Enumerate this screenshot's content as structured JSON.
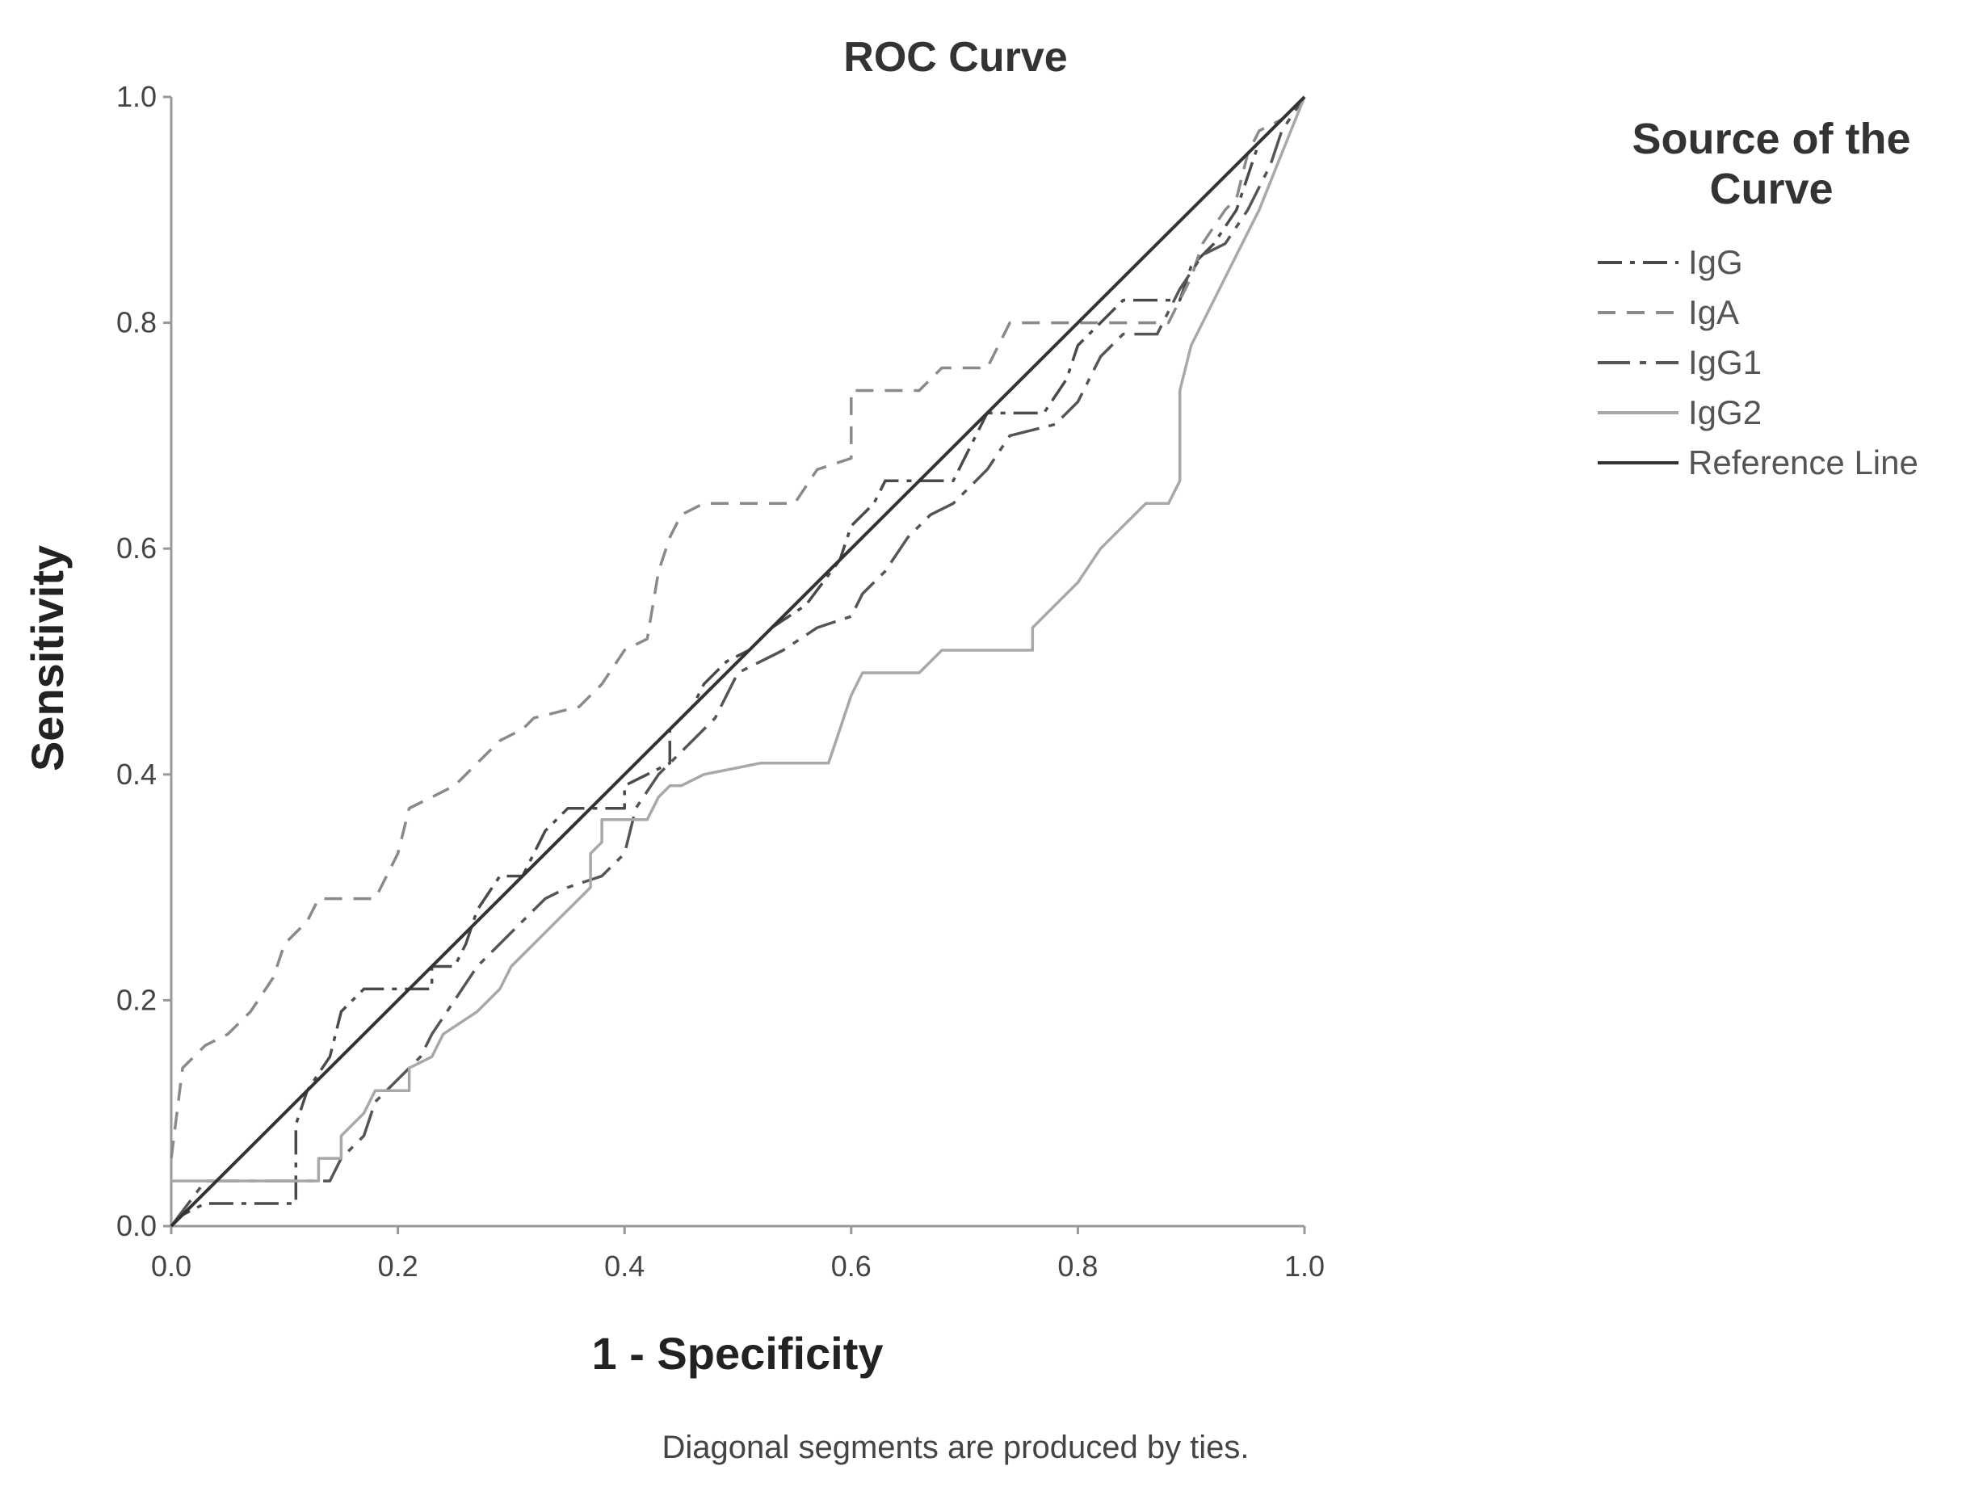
{
  "chart_data": {
    "type": "line",
    "title": "ROC Curve",
    "xlabel": "1 - Specificity",
    "ylabel": "Sensitivity",
    "xlim": [
      0,
      1
    ],
    "ylim": [
      0,
      1
    ],
    "x_ticks": [
      "0.0",
      "0.2",
      "0.4",
      "0.6",
      "0.8",
      "1.0"
    ],
    "y_ticks": [
      "0.0",
      "0.2",
      "0.4",
      "0.6",
      "0.8",
      "1.0"
    ],
    "grid": false,
    "legend": {
      "title_lines": [
        "Source of the",
        "Curve"
      ],
      "placement": "right"
    },
    "footnote": "Diagonal segments are produced by ties.",
    "series": [
      {
        "name": "IgG",
        "dash": "dash-dot",
        "color": "#4a4a4a",
        "points": [
          [
            0,
            0
          ],
          [
            0.01,
            0.01
          ],
          [
            0.03,
            0.02
          ],
          [
            0.11,
            0.02
          ],
          [
            0.11,
            0.09
          ],
          [
            0.12,
            0.12
          ],
          [
            0.14,
            0.15
          ],
          [
            0.15,
            0.19
          ],
          [
            0.17,
            0.21
          ],
          [
            0.23,
            0.21
          ],
          [
            0.23,
            0.23
          ],
          [
            0.25,
            0.23
          ],
          [
            0.26,
            0.25
          ],
          [
            0.27,
            0.28
          ],
          [
            0.29,
            0.31
          ],
          [
            0.31,
            0.31
          ],
          [
            0.33,
            0.35
          ],
          [
            0.35,
            0.37
          ],
          [
            0.4,
            0.37
          ],
          [
            0.4,
            0.39
          ],
          [
            0.44,
            0.41
          ],
          [
            0.44,
            0.44
          ],
          [
            0.46,
            0.46
          ],
          [
            0.47,
            0.48
          ],
          [
            0.49,
            0.5
          ],
          [
            0.51,
            0.51
          ],
          [
            0.53,
            0.53
          ],
          [
            0.56,
            0.55
          ],
          [
            0.59,
            0.59
          ],
          [
            0.6,
            0.62
          ],
          [
            0.62,
            0.64
          ],
          [
            0.63,
            0.66
          ],
          [
            0.69,
            0.66
          ],
          [
            0.71,
            0.7
          ],
          [
            0.72,
            0.72
          ],
          [
            0.77,
            0.72
          ],
          [
            0.79,
            0.75
          ],
          [
            0.8,
            0.78
          ],
          [
            0.82,
            0.8
          ],
          [
            0.84,
            0.82
          ],
          [
            0.89,
            0.82
          ],
          [
            0.9,
            0.85
          ],
          [
            0.92,
            0.87
          ],
          [
            0.94,
            0.9
          ],
          [
            0.96,
            0.96
          ],
          [
            0.97,
            0.97
          ],
          [
            0.98,
            0.98
          ],
          [
            0.99,
            0.99
          ],
          [
            1,
            1
          ]
        ]
      },
      {
        "name": "IgA",
        "dash": "dashed",
        "color": "#8a8a8a",
        "points": [
          [
            0,
            0.06
          ],
          [
            0.01,
            0.14
          ],
          [
            0.03,
            0.16
          ],
          [
            0.05,
            0.17
          ],
          [
            0.07,
            0.19
          ],
          [
            0.09,
            0.22
          ],
          [
            0.1,
            0.25
          ],
          [
            0.12,
            0.27
          ],
          [
            0.13,
            0.29
          ],
          [
            0.18,
            0.29
          ],
          [
            0.2,
            0.33
          ],
          [
            0.21,
            0.37
          ],
          [
            0.23,
            0.38
          ],
          [
            0.25,
            0.39
          ],
          [
            0.27,
            0.41
          ],
          [
            0.29,
            0.43
          ],
          [
            0.31,
            0.44
          ],
          [
            0.32,
            0.45
          ],
          [
            0.36,
            0.46
          ],
          [
            0.38,
            0.48
          ],
          [
            0.4,
            0.51
          ],
          [
            0.42,
            0.52
          ],
          [
            0.43,
            0.58
          ],
          [
            0.44,
            0.61
          ],
          [
            0.45,
            0.63
          ],
          [
            0.47,
            0.64
          ],
          [
            0.55,
            0.64
          ],
          [
            0.57,
            0.67
          ],
          [
            0.6,
            0.68
          ],
          [
            0.6,
            0.74
          ],
          [
            0.66,
            0.74
          ],
          [
            0.68,
            0.76
          ],
          [
            0.72,
            0.76
          ],
          [
            0.74,
            0.8
          ],
          [
            0.88,
            0.8
          ],
          [
            0.9,
            0.84
          ],
          [
            0.91,
            0.87
          ],
          [
            0.93,
            0.9
          ],
          [
            0.94,
            0.91
          ],
          [
            0.95,
            0.95
          ],
          [
            0.96,
            0.97
          ],
          [
            0.98,
            0.98
          ],
          [
            1,
            1
          ]
        ]
      },
      {
        "name": "IgG1",
        "dash": "long-dash-dot",
        "color": "#555555",
        "points": [
          [
            0,
            0
          ],
          [
            0.03,
            0.04
          ],
          [
            0.14,
            0.04
          ],
          [
            0.15,
            0.06
          ],
          [
            0.17,
            0.08
          ],
          [
            0.18,
            0.11
          ],
          [
            0.2,
            0.13
          ],
          [
            0.22,
            0.15
          ],
          [
            0.23,
            0.17
          ],
          [
            0.25,
            0.2
          ],
          [
            0.27,
            0.23
          ],
          [
            0.29,
            0.25
          ],
          [
            0.31,
            0.27
          ],
          [
            0.33,
            0.29
          ],
          [
            0.35,
            0.3
          ],
          [
            0.38,
            0.31
          ],
          [
            0.4,
            0.33
          ],
          [
            0.41,
            0.37
          ],
          [
            0.43,
            0.4
          ],
          [
            0.45,
            0.42
          ],
          [
            0.48,
            0.45
          ],
          [
            0.5,
            0.49
          ],
          [
            0.52,
            0.5
          ],
          [
            0.54,
            0.51
          ],
          [
            0.57,
            0.53
          ],
          [
            0.6,
            0.54
          ],
          [
            0.61,
            0.56
          ],
          [
            0.63,
            0.58
          ],
          [
            0.65,
            0.61
          ],
          [
            0.67,
            0.63
          ],
          [
            0.69,
            0.64
          ],
          [
            0.72,
            0.67
          ],
          [
            0.74,
            0.7
          ],
          [
            0.78,
            0.71
          ],
          [
            0.8,
            0.73
          ],
          [
            0.82,
            0.77
          ],
          [
            0.84,
            0.79
          ],
          [
            0.87,
            0.79
          ],
          [
            0.89,
            0.83
          ],
          [
            0.91,
            0.86
          ],
          [
            0.93,
            0.87
          ],
          [
            0.95,
            0.9
          ],
          [
            0.97,
            0.94
          ],
          [
            0.98,
            0.97
          ],
          [
            1,
            1
          ]
        ]
      },
      {
        "name": "IgG2",
        "dash": "solid",
        "color": "#a8a8a8",
        "points": [
          [
            0,
            0.04
          ],
          [
            0.13,
            0.04
          ],
          [
            0.13,
            0.06
          ],
          [
            0.15,
            0.06
          ],
          [
            0.15,
            0.08
          ],
          [
            0.17,
            0.1
          ],
          [
            0.18,
            0.12
          ],
          [
            0.21,
            0.12
          ],
          [
            0.21,
            0.14
          ],
          [
            0.23,
            0.15
          ],
          [
            0.24,
            0.17
          ],
          [
            0.27,
            0.19
          ],
          [
            0.29,
            0.21
          ],
          [
            0.3,
            0.23
          ],
          [
            0.32,
            0.25
          ],
          [
            0.34,
            0.27
          ],
          [
            0.36,
            0.29
          ],
          [
            0.37,
            0.3
          ],
          [
            0.37,
            0.33
          ],
          [
            0.38,
            0.34
          ],
          [
            0.38,
            0.36
          ],
          [
            0.42,
            0.36
          ],
          [
            0.43,
            0.38
          ],
          [
            0.44,
            0.39
          ],
          [
            0.45,
            0.39
          ],
          [
            0.47,
            0.4
          ],
          [
            0.52,
            0.41
          ],
          [
            0.58,
            0.41
          ],
          [
            0.59,
            0.44
          ],
          [
            0.6,
            0.47
          ],
          [
            0.61,
            0.49
          ],
          [
            0.66,
            0.49
          ],
          [
            0.68,
            0.51
          ],
          [
            0.76,
            0.51
          ],
          [
            0.76,
            0.53
          ],
          [
            0.78,
            0.55
          ],
          [
            0.8,
            0.57
          ],
          [
            0.82,
            0.6
          ],
          [
            0.84,
            0.62
          ],
          [
            0.86,
            0.64
          ],
          [
            0.88,
            0.64
          ],
          [
            0.89,
            0.66
          ],
          [
            0.89,
            0.74
          ],
          [
            0.9,
            0.78
          ],
          [
            0.92,
            0.82
          ],
          [
            0.94,
            0.86
          ],
          [
            0.96,
            0.9
          ],
          [
            0.98,
            0.95
          ],
          [
            1,
            1
          ]
        ]
      },
      {
        "name": "Reference Line",
        "dash": "solid",
        "color": "#333333",
        "points": [
          [
            0,
            0
          ],
          [
            1,
            1
          ]
        ]
      }
    ]
  }
}
